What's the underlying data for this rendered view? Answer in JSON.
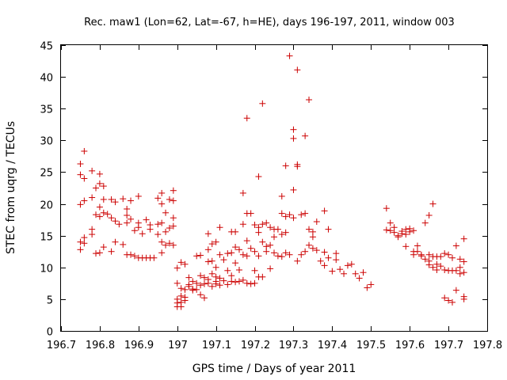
{
  "chart_data": {
    "type": "scatter",
    "title": "Rec. maw1 (Lon=62, Lat=-67, h=HE), days 196-197, 2011, window 003",
    "xlabel": "GPS time / Days of year 2011",
    "ylabel": "STEC from uqrg / TECUs",
    "xlim": [
      196.7,
      197.8
    ],
    "ylim": [
      0,
      45
    ],
    "x_ticks": [
      "196.7",
      "196.8",
      "196.9",
      "197",
      "197.1",
      "197.2",
      "197.3",
      "197.4",
      "197.5",
      "197.6",
      "197.7",
      "197.8"
    ],
    "y_ticks": [
      "0",
      "5",
      "10",
      "15",
      "20",
      "25",
      "30",
      "35",
      "40",
      "45"
    ],
    "marker": "+",
    "color": "#cc0000",
    "grid": false,
    "series": [
      {
        "points": [
          [
            196.75,
            26.3
          ],
          [
            196.75,
            24.6
          ],
          [
            196.75,
            19.9
          ],
          [
            196.75,
            14.0
          ],
          [
            196.75,
            12.8
          ],
          [
            196.76,
            28.3
          ],
          [
            196.76,
            24.0
          ],
          [
            196.76,
            20.5
          ],
          [
            196.76,
            14.7
          ],
          [
            196.76,
            13.8
          ],
          [
            196.78,
            25.2
          ],
          [
            196.78,
            21.0
          ],
          [
            196.78,
            16.0
          ],
          [
            196.78,
            15.2
          ],
          [
            196.79,
            22.5
          ],
          [
            196.79,
            18.3
          ],
          [
            196.79,
            12.2
          ],
          [
            196.8,
            24.7
          ],
          [
            196.8,
            23.2
          ],
          [
            196.8,
            19.5
          ],
          [
            196.8,
            18.0
          ],
          [
            196.8,
            12.3
          ],
          [
            196.81,
            22.8
          ],
          [
            196.81,
            20.7
          ],
          [
            196.81,
            18.6
          ],
          [
            196.81,
            13.2
          ],
          [
            196.82,
            18.4
          ],
          [
            196.83,
            20.7
          ],
          [
            196.83,
            17.8
          ],
          [
            196.83,
            12.5
          ],
          [
            196.84,
            20.3
          ],
          [
            196.84,
            17.3
          ],
          [
            196.84,
            14.0
          ],
          [
            196.85,
            16.8
          ],
          [
            196.86,
            20.8
          ],
          [
            196.86,
            13.6
          ],
          [
            196.87,
            19.2
          ],
          [
            196.87,
            18.2
          ],
          [
            196.87,
            17.0
          ],
          [
            196.87,
            12.0
          ],
          [
            196.88,
            20.5
          ],
          [
            196.88,
            17.6
          ],
          [
            196.88,
            12.0
          ],
          [
            196.89,
            15.8
          ],
          [
            196.89,
            11.8
          ],
          [
            196.9,
            21.2
          ],
          [
            196.9,
            17.0
          ],
          [
            196.9,
            16.3
          ],
          [
            196.9,
            11.5
          ],
          [
            196.91,
            15.3
          ],
          [
            196.91,
            11.5
          ],
          [
            196.92,
            17.5
          ],
          [
            196.92,
            11.5
          ],
          [
            196.93,
            16.7
          ],
          [
            196.93,
            16.0
          ],
          [
            196.93,
            11.5
          ],
          [
            196.94,
            11.5
          ],
          [
            196.95,
            20.9
          ],
          [
            196.95,
            16.8
          ],
          [
            196.95,
            15.2
          ],
          [
            196.96,
            21.7
          ],
          [
            196.96,
            20.0
          ],
          [
            196.96,
            17.0
          ],
          [
            196.96,
            14.0
          ],
          [
            196.96,
            12.3
          ],
          [
            196.97,
            18.6
          ],
          [
            196.97,
            15.6
          ],
          [
            196.97,
            13.5
          ],
          [
            196.98,
            20.7
          ],
          [
            196.98,
            16.2
          ],
          [
            196.98,
            13.8
          ],
          [
            196.99,
            22.1
          ],
          [
            196.99,
            20.5
          ],
          [
            196.99,
            17.8
          ],
          [
            196.99,
            16.5
          ],
          [
            196.99,
            13.5
          ],
          [
            197.0,
            9.9
          ],
          [
            197.0,
            7.5
          ],
          [
            197.0,
            5.0
          ],
          [
            197.0,
            4.4
          ],
          [
            197.0,
            3.8
          ],
          [
            197.01,
            10.8
          ],
          [
            197.01,
            6.7
          ],
          [
            197.01,
            5.5
          ],
          [
            197.01,
            4.5
          ],
          [
            197.01,
            3.8
          ],
          [
            197.02,
            10.5
          ],
          [
            197.02,
            6.5
          ],
          [
            197.02,
            5.3
          ],
          [
            197.02,
            4.8
          ],
          [
            197.03,
            8.4
          ],
          [
            197.03,
            7.3
          ],
          [
            197.03,
            7.0
          ],
          [
            197.04,
            7.8
          ],
          [
            197.04,
            6.6
          ],
          [
            197.04,
            6.4
          ],
          [
            197.05,
            11.8
          ],
          [
            197.05,
            7.5
          ],
          [
            197.05,
            6.5
          ],
          [
            197.06,
            11.9
          ],
          [
            197.06,
            8.7
          ],
          [
            197.06,
            7.2
          ],
          [
            197.06,
            5.7
          ],
          [
            197.07,
            8.4
          ],
          [
            197.07,
            7.4
          ],
          [
            197.07,
            5.2
          ],
          [
            197.08,
            15.3
          ],
          [
            197.08,
            12.8
          ],
          [
            197.08,
            10.9
          ],
          [
            197.08,
            8.1
          ],
          [
            197.08,
            7.5
          ],
          [
            197.09,
            13.7
          ],
          [
            197.09,
            11.0
          ],
          [
            197.09,
            9.0
          ],
          [
            197.09,
            7.0
          ],
          [
            197.1,
            14.0
          ],
          [
            197.1,
            10.0
          ],
          [
            197.1,
            8.5
          ],
          [
            197.1,
            7.8
          ],
          [
            197.1,
            7.4
          ],
          [
            197.11,
            16.3
          ],
          [
            197.11,
            12.0
          ],
          [
            197.11,
            8.3
          ],
          [
            197.11,
            7.2
          ],
          [
            197.12,
            11.2
          ],
          [
            197.12,
            7.9
          ],
          [
            197.13,
            12.2
          ],
          [
            197.13,
            9.5
          ],
          [
            197.13,
            7.3
          ],
          [
            197.14,
            15.6
          ],
          [
            197.14,
            12.3
          ],
          [
            197.14,
            8.7
          ],
          [
            197.14,
            7.8
          ],
          [
            197.15,
            15.6
          ],
          [
            197.15,
            13.2
          ],
          [
            197.15,
            10.7
          ],
          [
            197.15,
            7.7
          ],
          [
            197.16,
            12.8
          ],
          [
            197.16,
            9.6
          ],
          [
            197.16,
            7.8
          ],
          [
            197.17,
            21.7
          ],
          [
            197.17,
            16.8
          ],
          [
            197.17,
            12.0
          ],
          [
            197.17,
            8.0
          ],
          [
            197.18,
            33.5
          ],
          [
            197.18,
            18.5
          ],
          [
            197.18,
            14.2
          ],
          [
            197.18,
            11.8
          ],
          [
            197.18,
            7.5
          ],
          [
            197.19,
            18.5
          ],
          [
            197.19,
            13.0
          ],
          [
            197.19,
            7.4
          ],
          [
            197.2,
            16.7
          ],
          [
            197.2,
            12.5
          ],
          [
            197.2,
            9.5
          ],
          [
            197.2,
            7.5
          ],
          [
            197.21,
            24.3
          ],
          [
            197.21,
            16.3
          ],
          [
            197.21,
            15.5
          ],
          [
            197.21,
            11.8
          ],
          [
            197.21,
            8.5
          ],
          [
            197.22,
            35.8
          ],
          [
            197.22,
            16.8
          ],
          [
            197.22,
            14.0
          ],
          [
            197.22,
            8.5
          ],
          [
            197.23,
            17.0
          ],
          [
            197.23,
            13.3
          ],
          [
            197.23,
            12.5
          ],
          [
            197.24,
            16.3
          ],
          [
            197.24,
            13.5
          ],
          [
            197.24,
            9.8
          ],
          [
            197.25,
            16.0
          ],
          [
            197.25,
            14.8
          ],
          [
            197.25,
            12.3
          ],
          [
            197.26,
            16.0
          ],
          [
            197.26,
            11.8
          ],
          [
            197.27,
            21.2
          ],
          [
            197.27,
            18.5
          ],
          [
            197.27,
            15.2
          ],
          [
            197.27,
            11.7
          ],
          [
            197.28,
            26.0
          ],
          [
            197.28,
            18.0
          ],
          [
            197.28,
            15.5
          ],
          [
            197.28,
            12.3
          ],
          [
            197.29,
            43.3
          ],
          [
            197.29,
            18.3
          ],
          [
            197.29,
            12.0
          ],
          [
            197.3,
            31.7
          ],
          [
            197.3,
            30.3
          ],
          [
            197.3,
            22.2
          ],
          [
            197.3,
            17.8
          ],
          [
            197.31,
            41.1
          ],
          [
            197.31,
            26.2
          ],
          [
            197.31,
            25.9
          ],
          [
            197.31,
            11.0
          ],
          [
            197.32,
            18.3
          ],
          [
            197.32,
            12.0
          ],
          [
            197.33,
            30.7
          ],
          [
            197.33,
            18.5
          ],
          [
            197.33,
            12.5
          ],
          [
            197.34,
            36.4
          ],
          [
            197.34,
            16.0
          ],
          [
            197.34,
            13.5
          ],
          [
            197.35,
            15.6
          ],
          [
            197.35,
            14.8
          ],
          [
            197.35,
            13.0
          ],
          [
            197.36,
            17.2
          ],
          [
            197.36,
            12.7
          ],
          [
            197.37,
            11.0
          ],
          [
            197.38,
            18.9
          ],
          [
            197.38,
            12.4
          ],
          [
            197.38,
            10.3
          ],
          [
            197.39,
            16.0
          ],
          [
            197.39,
            11.5
          ],
          [
            197.4,
            9.4
          ],
          [
            197.41,
            12.2
          ],
          [
            197.41,
            11.2
          ],
          [
            197.42,
            9.7
          ],
          [
            197.43,
            9.0
          ],
          [
            197.44,
            10.3
          ],
          [
            197.45,
            10.5
          ],
          [
            197.46,
            9.0
          ],
          [
            197.47,
            8.3
          ],
          [
            197.48,
            9.2
          ],
          [
            197.49,
            6.8
          ],
          [
            197.5,
            7.3
          ],
          [
            197.54,
            19.3
          ],
          [
            197.54,
            15.9
          ],
          [
            197.55,
            17.0
          ],
          [
            197.55,
            15.8
          ],
          [
            197.56,
            16.3
          ],
          [
            197.56,
            15.5
          ],
          [
            197.57,
            15.0
          ],
          [
            197.57,
            14.8
          ],
          [
            197.58,
            15.7
          ],
          [
            197.58,
            15.3
          ],
          [
            197.59,
            16.0
          ],
          [
            197.59,
            15.2
          ],
          [
            197.59,
            13.3
          ],
          [
            197.6,
            16.1
          ],
          [
            197.6,
            15.6
          ],
          [
            197.61,
            15.8
          ],
          [
            197.61,
            12.5
          ],
          [
            197.61,
            12.0
          ],
          [
            197.62,
            13.4
          ],
          [
            197.62,
            12.5
          ],
          [
            197.63,
            12.0
          ],
          [
            197.63,
            11.8
          ],
          [
            197.64,
            17.0
          ],
          [
            197.64,
            11.3
          ],
          [
            197.65,
            18.2
          ],
          [
            197.65,
            12.0
          ],
          [
            197.65,
            11.0
          ],
          [
            197.65,
            10.4
          ],
          [
            197.66,
            20.0
          ],
          [
            197.66,
            11.7
          ],
          [
            197.66,
            10.0
          ],
          [
            197.67,
            11.7
          ],
          [
            197.67,
            10.5
          ],
          [
            197.67,
            9.6
          ],
          [
            197.68,
            11.7
          ],
          [
            197.68,
            10.2
          ],
          [
            197.69,
            12.2
          ],
          [
            197.69,
            9.6
          ],
          [
            197.69,
            5.2
          ],
          [
            197.7,
            12.0
          ],
          [
            197.7,
            9.5
          ],
          [
            197.7,
            4.8
          ],
          [
            197.71,
            11.5
          ],
          [
            197.71,
            9.5
          ],
          [
            197.71,
            4.5
          ],
          [
            197.72,
            13.4
          ],
          [
            197.72,
            9.5
          ],
          [
            197.72,
            6.4
          ],
          [
            197.73,
            11.3
          ],
          [
            197.73,
            10.0
          ],
          [
            197.73,
            9.0
          ],
          [
            197.74,
            14.5
          ],
          [
            197.74,
            10.9
          ],
          [
            197.74,
            9.2
          ],
          [
            197.74,
            5.4
          ],
          [
            197.74,
            5.0
          ]
        ]
      }
    ]
  }
}
